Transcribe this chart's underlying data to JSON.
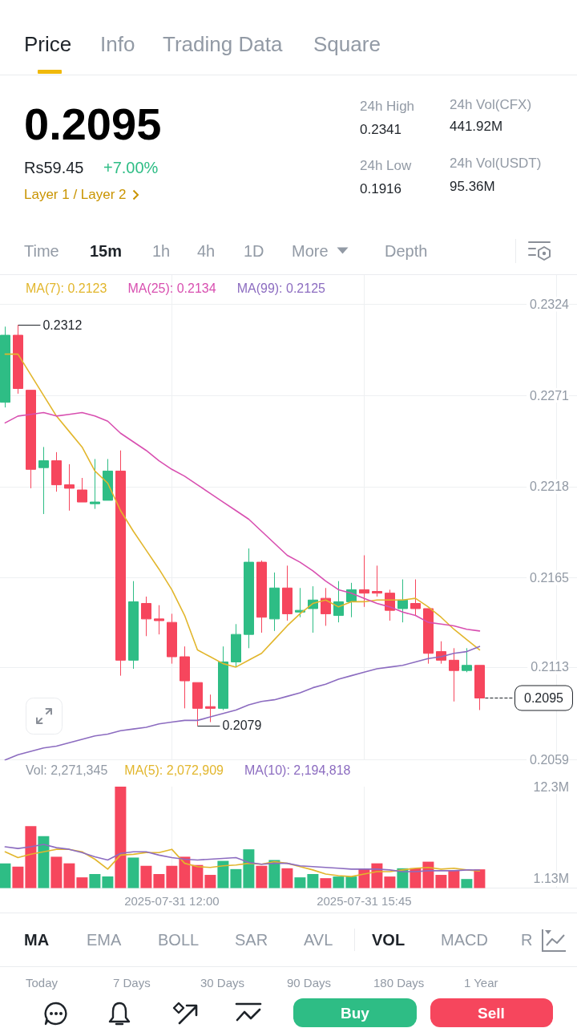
{
  "chart_data": [
    {
      "type": "other",
      "annotations": [
        "Price",
        "Info",
        "Trading Data",
        "Square",
        "0.2095",
        "24h High",
        "24h Vol(CFX)",
        "0.2341",
        "441.92M",
        "Rs59.45",
        "+7.00%",
        "24h Low",
        "24h Vol(USDT)",
        "0.1916",
        "95.36M",
        "Layer 1 / Layer 2",
        "Time",
        "15m",
        "1h",
        "4h",
        "1D",
        "More",
        "Depth"
      ]
    },
    {
      "type": "candlestick",
      "x": [
        "2025-07-31T08:45",
        "2025-07-31T09:00",
        "2025-07-31T09:15",
        "2025-07-31T09:30",
        "2025-07-31T09:45",
        "2025-07-31T10:00",
        "2025-07-31T10:15",
        "2025-07-31T10:30",
        "2025-07-31T10:45",
        "2025-07-31T11:00",
        "2025-07-31T11:15",
        "2025-07-31T11:30",
        "2025-07-31T11:45",
        "2025-07-31T12:00",
        "2025-07-31T12:15",
        "2025-07-31T12:30",
        "2025-07-31T12:45",
        "2025-07-31T13:00",
        "2025-07-31T13:15",
        "2025-07-31T13:30",
        "2025-07-31T13:45",
        "2025-07-31T14:00",
        "2025-07-31T14:15",
        "2025-07-31T14:30",
        "2025-07-31T14:45",
        "2025-07-31T15:00",
        "2025-07-31T15:15",
        "2025-07-31T15:30",
        "2025-07-31T15:45",
        "2025-07-31T16:00",
        "2025-07-31T16:15",
        "2025-07-31T16:30",
        "2025-07-31T16:45",
        "2025-07-31T17:00",
        "2025-07-31T17:15",
        "2025-07-31T17:30",
        "2025-07-31T17:45",
        "2025-07-31T18:00"
      ],
      "ohlc": [
        [
          0.2267,
          0.2311,
          0.2264,
          0.2306
        ],
        [
          0.2306,
          0.2312,
          0.2272,
          0.2275
        ],
        [
          0.2274,
          0.2274,
          0.2217,
          0.2228
        ],
        [
          0.2229,
          0.2241,
          0.2202,
          0.2233
        ],
        [
          0.2233,
          0.2238,
          0.2215,
          0.2219
        ],
        [
          0.2219,
          0.2231,
          0.2204,
          0.2217
        ],
        [
          0.2216,
          0.2223,
          0.2209,
          0.2209
        ],
        [
          0.2208,
          0.2234,
          0.2205,
          0.2209
        ],
        [
          0.221,
          0.2234,
          0.221,
          0.2227
        ],
        [
          0.2227,
          0.2239,
          0.2108,
          0.2117
        ],
        [
          0.2117,
          0.2163,
          0.2112,
          0.2151
        ],
        [
          0.215,
          0.2154,
          0.2131,
          0.2141
        ],
        [
          0.2141,
          0.2149,
          0.2132,
          0.214
        ],
        [
          0.2139,
          0.2144,
          0.2115,
          0.2119
        ],
        [
          0.2119,
          0.2125,
          0.2089,
          0.2105
        ],
        [
          0.2104,
          0.2104,
          0.2079,
          0.2089
        ],
        [
          0.209,
          0.2097,
          0.2081,
          0.2089
        ],
        [
          0.2089,
          0.2125,
          0.2088,
          0.2116
        ],
        [
          0.2116,
          0.2138,
          0.2113,
          0.2132
        ],
        [
          0.2132,
          0.2182,
          0.2124,
          0.2174
        ],
        [
          0.2174,
          0.2175,
          0.2133,
          0.2142
        ],
        [
          0.2141,
          0.2168,
          0.2134,
          0.2159
        ],
        [
          0.2159,
          0.2172,
          0.214,
          0.2144
        ],
        [
          0.2145,
          0.2159,
          0.2142,
          0.2146
        ],
        [
          0.2147,
          0.216,
          0.2133,
          0.2152
        ],
        [
          0.2153,
          0.2159,
          0.2137,
          0.2144
        ],
        [
          0.2143,
          0.2163,
          0.2139,
          0.2151
        ],
        [
          0.2151,
          0.2162,
          0.2142,
          0.2158
        ],
        [
          0.2158,
          0.2178,
          0.2148,
          0.2156
        ],
        [
          0.2157,
          0.2172,
          0.2154,
          0.2156
        ],
        [
          0.2156,
          0.2158,
          0.214,
          0.2146
        ],
        [
          0.2147,
          0.2164,
          0.2139,
          0.2152
        ],
        [
          0.215,
          0.2164,
          0.2143,
          0.2147
        ],
        [
          0.2147,
          0.2147,
          0.2115,
          0.2121
        ],
        [
          0.2122,
          0.2128,
          0.2115,
          0.2117
        ],
        [
          0.2117,
          0.2124,
          0.2093,
          0.2111
        ],
        [
          0.2111,
          0.2124,
          0.211,
          0.2114
        ],
        [
          0.2114,
          0.2114,
          0.2088,
          0.2095
        ]
      ],
      "colors": [
        "#2ebd85",
        "#f6465d",
        "#f6465d",
        "#2ebd85",
        "#f6465d",
        "#f6465d",
        "#f6465d",
        "#2ebd85",
        "#2ebd85",
        "#f6465d",
        "#2ebd85",
        "#f6465d",
        "#f6465d",
        "#f6465d",
        "#f6465d",
        "#f6465d",
        "#f6465d",
        "#2ebd85",
        "#2ebd85",
        "#2ebd85",
        "#f6465d",
        "#2ebd85",
        "#f6465d",
        "#2ebd85",
        "#2ebd85",
        "#f6465d",
        "#2ebd85",
        "#2ebd85",
        "#f6465d",
        "#f6465d",
        "#f6465d",
        "#2ebd85",
        "#f6465d",
        "#f6465d",
        "#f6465d",
        "#f6465d",
        "#2ebd85",
        "#f6465d"
      ],
      "series": [
        {
          "name": "MA(7): 0.2123",
          "type": "line",
          "color": "#e2b62c",
          "values": [
            0.2295,
            0.2295,
            0.2283,
            0.2271,
            0.2259,
            0.225,
            0.2241,
            0.2227,
            0.222,
            0.2204,
            0.2192,
            0.2181,
            0.217,
            0.2158,
            0.2143,
            0.2123,
            0.2119,
            0.2115,
            0.2113,
            0.2117,
            0.2121,
            0.2129,
            0.2137,
            0.2144,
            0.215,
            0.2152,
            0.2148,
            0.2151,
            0.2151,
            0.2152,
            0.2152,
            0.2152,
            0.2153,
            0.2148,
            0.2142,
            0.2135,
            0.2129,
            0.2123
          ]
        },
        {
          "name": "MA(25): 0.2134",
          "type": "line",
          "color": "#d84fb0",
          "values": [
            0.2255,
            0.2259,
            0.226,
            0.2261,
            0.2259,
            0.226,
            0.2261,
            0.2259,
            0.2256,
            0.2249,
            0.2244,
            0.2239,
            0.2233,
            0.2228,
            0.2224,
            0.2219,
            0.2214,
            0.2209,
            0.2204,
            0.2199,
            0.2192,
            0.2185,
            0.2178,
            0.2174,
            0.2169,
            0.2163,
            0.2158,
            0.2156,
            0.2153,
            0.215,
            0.2148,
            0.2145,
            0.2143,
            0.2139,
            0.2138,
            0.2137,
            0.2135,
            0.2134
          ]
        },
        {
          "name": "MA(99): 0.2125",
          "type": "line",
          "color": "#8c6cc0",
          "values": [
            0.2059,
            0.2062,
            0.2064,
            0.2066,
            0.2067,
            0.2069,
            0.2071,
            0.2073,
            0.2074,
            0.2076,
            0.2077,
            0.2078,
            0.208,
            0.2081,
            0.2082,
            0.2082,
            0.2084,
            0.2086,
            0.2088,
            0.2091,
            0.2093,
            0.2094,
            0.2096,
            0.2098,
            0.2101,
            0.2103,
            0.2106,
            0.2108,
            0.211,
            0.2112,
            0.2113,
            0.2114,
            0.2116,
            0.2118,
            0.2119,
            0.2121,
            0.2122,
            0.2125
          ]
        }
      ],
      "xlim": [
        "2025-07-31T08:39",
        "2025-07-31T19:54"
      ],
      "xticks": [
        {
          "value": "2025-07-31T12:00",
          "label": null
        },
        {
          "value": "2025-07-31T15:45",
          "label": null
        },
        {
          "value": "2025-07-31T19:30",
          "label": null
        }
      ],
      "ylim": [
        0.2059,
        0.2341
      ],
      "yticks": [
        0.2059,
        0.2113,
        0.2165,
        0.2218,
        0.2271,
        0.2324
      ],
      "grid": true,
      "legend": "top left",
      "tick_labels": "y",
      "annotations": [
        {
          "text": "0.2312",
          "x": "2025-07-31T09:00",
          "y": 0.2312
        },
        {
          "text": "0.2079",
          "x": "2025-07-31T12:30",
          "y": 0.2079
        }
      ],
      "ref_lines": [
        {
          "axis": "y",
          "value": 0.2095,
          "label": "0.2095",
          "color": "#1e2329",
          "line_style": "dashed"
        }
      ]
    },
    {
      "type": "bar",
      "title": "Vol: 2,271,345",
      "x": [
        "2025-07-31T08:45",
        "2025-07-31T09:00",
        "2025-07-31T09:15",
        "2025-07-31T09:30",
        "2025-07-31T09:45",
        "2025-07-31T10:00",
        "2025-07-31T10:15",
        "2025-07-31T10:30",
        "2025-07-31T10:45",
        "2025-07-31T11:00",
        "2025-07-31T11:15",
        "2025-07-31T11:30",
        "2025-07-31T11:45",
        "2025-07-31T12:00",
        "2025-07-31T12:15",
        "2025-07-31T12:30",
        "2025-07-31T12:45",
        "2025-07-31T13:00",
        "2025-07-31T13:15",
        "2025-07-31T13:30",
        "2025-07-31T13:45",
        "2025-07-31T14:00",
        "2025-07-31T14:15",
        "2025-07-31T14:30",
        "2025-07-31T14:45",
        "2025-07-31T15:00",
        "2025-07-31T15:15",
        "2025-07-31T15:30",
        "2025-07-31T15:45",
        "2025-07-31T16:00",
        "2025-07-31T16:15",
        "2025-07-31T16:30",
        "2025-07-31T16:45",
        "2025-07-31T17:00",
        "2025-07-31T17:15",
        "2025-07-31T17:30",
        "2025-07-31T17:45",
        "2025-07-31T18:00"
      ],
      "series": [
        {
          "values": [
            3000000,
            2600000,
            7500000,
            6300000,
            3800000,
            3000000,
            1300000,
            1700000,
            1400000,
            12300000,
            3700000,
            2700000,
            1700000,
            2700000,
            3800000,
            2800000,
            1600000,
            3300000,
            2300000,
            4700000,
            2700000,
            3400000,
            2400000,
            1300000,
            1700000,
            1200000,
            1400000,
            1400000,
            2300000,
            3000000,
            1400000,
            2400000,
            2400000,
            3200000,
            1600000,
            2100000,
            1100000,
            2271345
          ],
          "colors": [
            "#2ebd85",
            "#f6465d",
            "#f6465d",
            "#2ebd85",
            "#f6465d",
            "#f6465d",
            "#f6465d",
            "#2ebd85",
            "#2ebd85",
            "#f6465d",
            "#2ebd85",
            "#f6465d",
            "#f6465d",
            "#f6465d",
            "#f6465d",
            "#f6465d",
            "#f6465d",
            "#2ebd85",
            "#2ebd85",
            "#2ebd85",
            "#f6465d",
            "#2ebd85",
            "#f6465d",
            "#2ebd85",
            "#2ebd85",
            "#f6465d",
            "#2ebd85",
            "#2ebd85",
            "#f6465d",
            "#f6465d",
            "#f6465d",
            "#2ebd85",
            "#f6465d",
            "#f6465d",
            "#f6465d",
            "#f6465d",
            "#2ebd85",
            "#f6465d"
          ]
        },
        {
          "name": "MA(5): 2,072,909",
          "type": "line",
          "color": "#e2b62c",
          "values": [
            4400000,
            3700000,
            4100000,
            4400000,
            4700000,
            4700000,
            4400000,
            3500000,
            2300000,
            4000000,
            4100000,
            4300000,
            4300000,
            4700000,
            3000000,
            2600000,
            2500000,
            2700000,
            2800000,
            3000000,
            2900000,
            3200000,
            3000000,
            2600000,
            2200000,
            1700000,
            1500000,
            1400000,
            1700000,
            2000000,
            2000000,
            2200000,
            2400000,
            2500000,
            2300000,
            2400000,
            2200000,
            2072909
          ]
        },
        {
          "name": "MA(10): 2,194,818",
          "type": "line",
          "color": "#8c6cc0",
          "values": [
            5000000,
            4800000,
            5000000,
            5300000,
            4900000,
            4700000,
            4300000,
            3800000,
            3400000,
            4200000,
            4400000,
            4400000,
            4000000,
            3700000,
            3500000,
            3400000,
            3500000,
            3600000,
            3700000,
            3100000,
            2900000,
            3000000,
            3000000,
            2700000,
            2600000,
            2500000,
            2400000,
            2300000,
            2300000,
            2300000,
            2200000,
            2000000,
            2000000,
            2100000,
            2100000,
            2100000,
            2200000,
            2194818
          ]
        }
      ],
      "xlim": [
        "2025-07-31T08:39",
        "2025-07-31T19:54"
      ],
      "xticks": [
        {
          "value": "2025-07-31T12:00",
          "label": "2025-07-31 12:00"
        },
        {
          "value": "2025-07-31T15:45",
          "label": "2025-07-31 15:45"
        },
        {
          "value": "2025-07-31T19:30",
          "label": null
        }
      ],
      "ylim": [
        0,
        12300000
      ],
      "yticks": [
        {
          "value": 1130000,
          "label": "1.13M"
        },
        {
          "value": 12300000,
          "label": "12.3M"
        }
      ],
      "grid": "x",
      "legend": "top left"
    },
    {
      "type": "other",
      "annotations": [
        "MA",
        "EMA",
        "BOLL",
        "SAR",
        "AVL",
        "VOL",
        "MACD",
        "R",
        "Today",
        "7 Days",
        "30 Days",
        "90 Days",
        "180 Days",
        "1 Year",
        "Buy",
        "Sell"
      ]
    }
  ]
}
